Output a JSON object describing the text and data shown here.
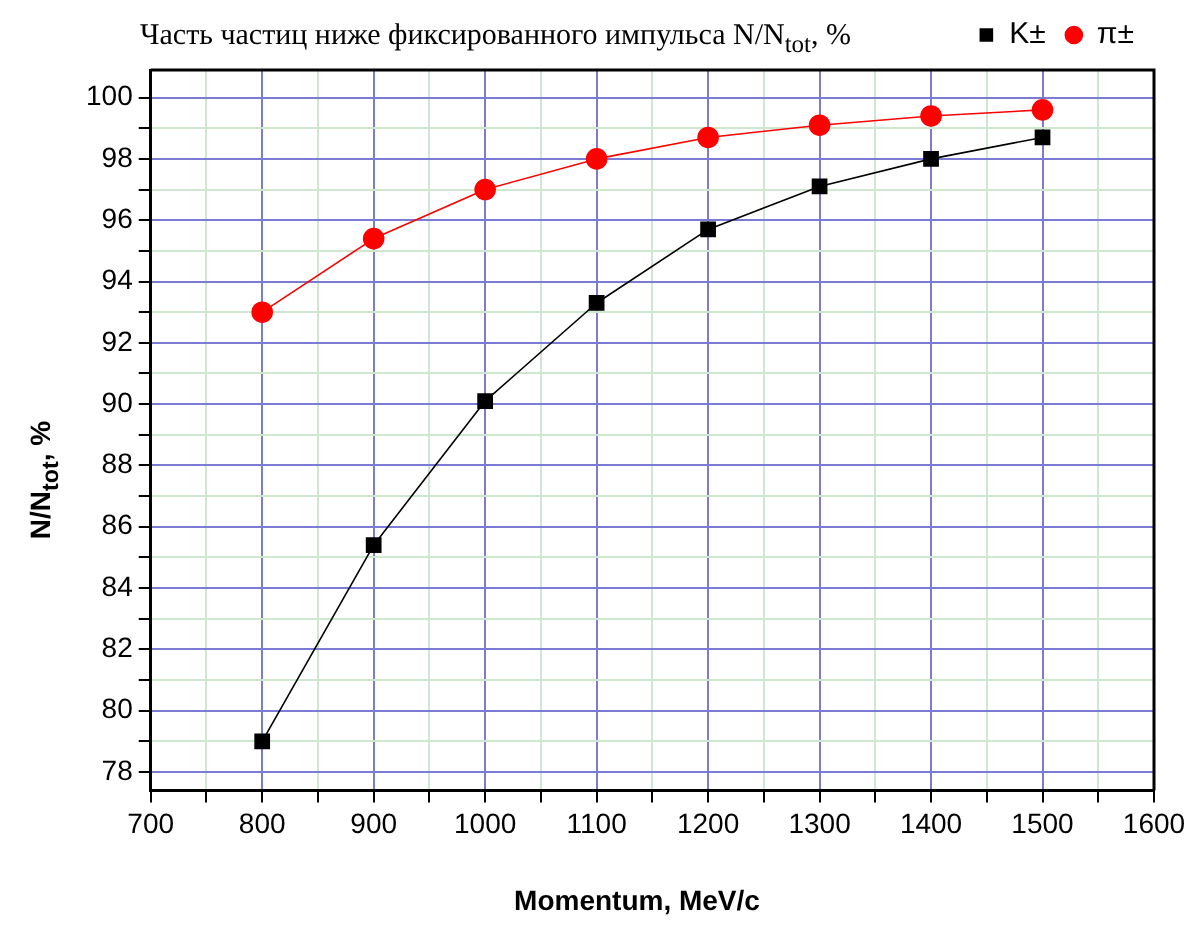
{
  "chart_data": {
    "type": "line",
    "title": "Часть частиц ниже фиксированного импульса N/N$_{tot}$, %",
    "xlabel": "Momentum, MeV/c",
    "ylabel": "N/N$_{tot}$, %",
    "x": [
      800,
      900,
      1000,
      1100,
      1200,
      1300,
      1400,
      1500
    ],
    "series": [
      {
        "name": "K±",
        "color": "#000000",
        "marker": "square",
        "values": [
          79,
          85.4,
          90.1,
          93.3,
          95.7,
          97.1,
          98,
          98.7
        ]
      },
      {
        "name": "π±",
        "color": "#ff0000",
        "marker": "circle",
        "values": [
          93,
          95.4,
          97,
          98,
          98.7,
          99.1,
          99.4,
          99.6
        ]
      }
    ],
    "xlim": [
      700,
      1600
    ],
    "xticks": [
      700,
      {
        "value": 750,
        "label": null
      },
      800,
      {
        "value": 850,
        "label": null
      },
      900,
      {
        "value": 950,
        "label": null
      },
      1000,
      {
        "value": 1050,
        "label": null
      },
      1100,
      {
        "value": 1150,
        "label": null
      },
      1200,
      {
        "value": 1250,
        "label": null
      },
      1300,
      {
        "value": 1350,
        "label": null
      },
      1400,
      {
        "value": 1450,
        "label": null
      },
      1500,
      {
        "value": 1550,
        "label": null
      },
      1600
    ],
    "ylim": [
      77.4,
      100.9
    ],
    "yticks": [
      78,
      {
        "value": 79,
        "label": null
      },
      80,
      {
        "value": 81,
        "label": null
      },
      82,
      {
        "value": 83,
        "label": null
      },
      84,
      {
        "value": 85,
        "label": null
      },
      86,
      {
        "value": 87,
        "label": null
      },
      88,
      {
        "value": 89,
        "label": null
      },
      90,
      {
        "value": 91,
        "label": null
      },
      92,
      {
        "value": 93,
        "label": null
      },
      94,
      {
        "value": 95,
        "label": null
      },
      96,
      {
        "value": 97,
        "label": null
      },
      98,
      {
        "value": 99,
        "label": null
      },
      100
    ],
    "grid": true,
    "legend": "top right",
    "line_style": "solid"
  }
}
